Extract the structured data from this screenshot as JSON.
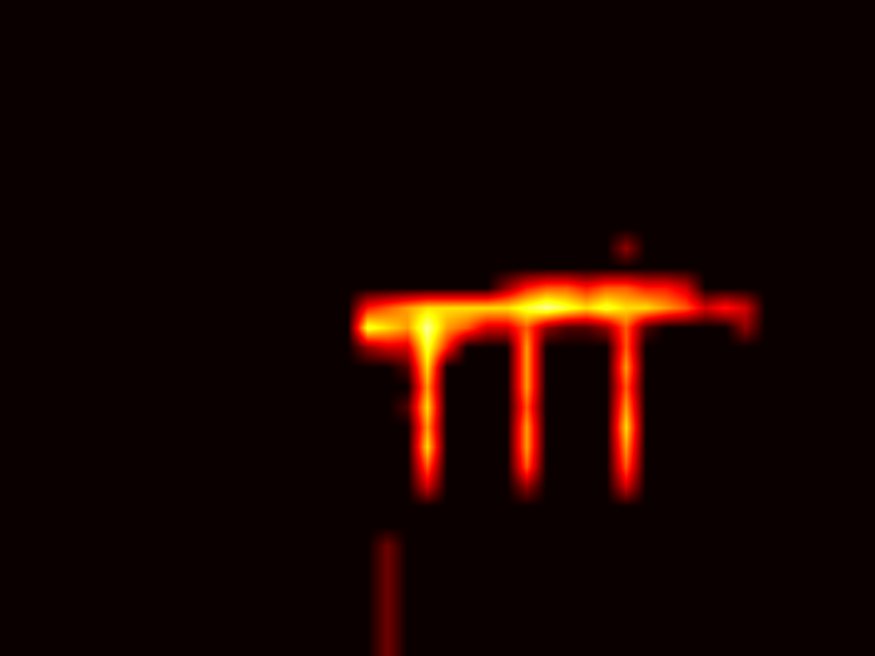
{
  "chart_data": {
    "type": "heatmap",
    "color": "hot",
    "value_range": [
      0,
      1
    ],
    "tick_labels": false,
    "cells": [
      [
        0,
        0,
        0,
        0,
        0,
        0,
        0,
        0,
        0,
        0,
        0,
        0,
        0,
        0,
        0,
        0,
        0,
        0,
        0,
        0,
        0,
        0,
        0,
        0,
        0,
        0,
        0,
        0,
        0,
        0,
        0,
        0,
        0,
        0,
        0,
        0,
        0,
        0,
        0,
        0,
        0,
        0,
        0,
        0
      ],
      [
        0,
        0,
        0,
        0,
        0,
        0,
        0,
        0,
        0,
        0,
        0,
        0,
        0,
        0,
        0,
        0,
        0,
        0,
        0,
        0,
        0,
        0,
        0,
        0,
        0,
        0,
        0,
        0,
        0,
        0,
        0,
        0,
        0,
        0,
        0,
        0,
        0,
        0,
        0,
        0,
        0,
        0,
        0,
        0
      ],
      [
        0,
        0,
        0,
        0,
        0,
        0,
        0,
        0,
        0,
        0,
        0,
        0,
        0,
        0,
        0,
        0,
        0,
        0,
        0,
        0,
        0,
        0,
        0,
        0,
        0,
        0,
        0,
        0,
        0,
        0,
        0,
        0,
        0,
        0,
        0,
        0,
        0,
        0,
        0,
        0,
        0,
        0,
        0,
        0
      ],
      [
        0,
        0,
        0,
        0,
        0,
        0,
        0,
        0,
        0,
        0,
        0,
        0,
        0,
        0,
        0,
        0,
        0,
        0,
        0,
        0,
        0,
        0,
        0,
        0,
        0,
        0,
        0,
        0,
        0,
        0,
        0,
        0,
        0,
        0,
        0,
        0,
        0,
        0,
        0,
        0,
        0,
        0,
        0,
        0
      ],
      [
        0,
        0,
        0,
        0,
        0,
        0,
        0,
        0,
        0,
        0,
        0,
        0,
        0,
        0,
        0,
        0,
        0,
        0,
        0,
        0,
        0,
        0,
        0,
        0,
        0,
        0,
        0,
        0,
        0,
        0,
        0,
        0,
        0,
        0,
        0,
        0,
        0,
        0,
        0,
        0,
        0,
        0,
        0,
        0
      ],
      [
        0,
        0,
        0,
        0,
        0,
        0,
        0,
        0,
        0,
        0,
        0,
        0,
        0,
        0,
        0,
        0,
        0,
        0,
        0,
        0,
        0,
        0,
        0,
        0,
        0,
        0,
        0,
        0,
        0,
        0,
        0,
        0,
        0,
        0,
        0,
        0,
        0,
        0,
        0,
        0,
        0,
        0,
        0,
        0
      ],
      [
        0,
        0,
        0,
        0,
        0,
        0,
        0,
        0,
        0,
        0,
        0,
        0,
        0,
        0,
        0,
        0,
        0,
        0,
        0,
        0,
        0,
        0,
        0,
        0,
        0,
        0,
        0,
        0,
        0,
        0,
        0,
        0,
        0,
        0,
        0,
        0,
        0,
        0,
        0,
        0,
        0,
        0,
        0,
        0
      ],
      [
        0,
        0,
        0,
        0,
        0,
        0,
        0,
        0,
        0,
        0,
        0,
        0,
        0,
        0,
        0,
        0,
        0,
        0,
        0,
        0,
        0,
        0,
        0,
        0,
        0,
        0,
        0,
        0,
        0,
        0,
        0,
        0,
        0,
        0,
        0,
        0,
        0,
        0,
        0,
        0,
        0,
        0,
        0,
        0
      ],
      [
        0,
        0,
        0,
        0,
        0,
        0,
        0,
        0,
        0,
        0,
        0,
        0,
        0,
        0,
        0,
        0,
        0,
        0,
        0,
        0,
        0,
        0,
        0,
        0,
        0,
        0,
        0,
        0,
        0,
        0,
        0,
        0,
        0,
        0,
        0,
        0,
        0,
        0,
        0,
        0,
        0,
        0,
        0,
        0
      ],
      [
        0,
        0,
        0,
        0,
        0,
        0,
        0,
        0,
        0,
        0,
        0,
        0,
        0,
        0,
        0,
        0,
        0,
        0,
        0,
        0,
        0,
        0,
        0,
        0,
        0,
        0,
        0,
        0,
        0,
        0,
        0,
        0,
        0,
        0,
        0,
        0,
        0,
        0,
        0,
        0,
        0,
        0,
        0,
        0
      ],
      [
        0,
        0,
        0,
        0,
        0,
        0,
        0,
        0,
        0,
        0,
        0,
        0,
        0,
        0,
        0,
        0,
        0,
        0,
        0,
        0,
        0,
        0,
        0,
        0,
        0,
        0,
        0,
        0,
        0,
        0,
        0,
        0,
        0,
        0,
        0,
        0,
        0,
        0,
        0,
        0,
        0,
        0,
        0,
        0
      ],
      [
        0,
        0,
        0,
        0,
        0,
        0,
        0,
        0,
        0,
        0,
        0,
        0,
        0,
        0,
        0,
        0,
        0,
        0,
        0,
        0,
        0,
        0,
        0,
        0,
        0,
        0,
        0,
        0,
        0,
        0,
        0,
        0,
        0,
        0,
        0,
        0,
        0,
        0,
        0,
        0,
        0,
        0,
        0,
        0
      ],
      [
        0,
        0,
        0,
        0,
        0,
        0,
        0,
        0,
        0,
        0,
        0,
        0,
        0,
        0,
        0,
        0,
        0,
        0,
        0,
        0,
        0,
        0,
        0,
        0,
        0,
        0,
        0,
        0,
        0,
        0,
        0,
        0.2,
        0,
        0,
        0,
        0,
        0,
        0,
        0,
        0,
        0,
        0,
        0,
        0
      ],
      [
        0,
        0,
        0,
        0,
        0,
        0,
        0,
        0,
        0,
        0,
        0,
        0,
        0,
        0,
        0,
        0,
        0,
        0,
        0,
        0,
        0,
        0,
        0,
        0,
        0,
        0,
        0,
        0,
        0,
        0,
        0,
        0,
        0,
        0,
        0,
        0,
        0,
        0,
        0,
        0,
        0,
        0,
        0,
        0
      ],
      [
        0,
        0,
        0,
        0,
        0,
        0,
        0,
        0,
        0,
        0,
        0,
        0,
        0,
        0,
        0,
        0,
        0,
        0,
        0,
        0,
        0,
        0,
        0,
        0,
        0,
        0.2,
        0.4,
        0.5,
        0.5,
        0.4,
        0.5,
        0.5,
        0.4,
        0.4,
        0.3,
        0,
        0,
        0,
        0,
        0,
        0,
        0,
        0,
        0
      ],
      [
        0,
        0,
        0,
        0,
        0,
        0,
        0,
        0,
        0,
        0,
        0,
        0,
        0,
        0,
        0,
        0,
        0,
        0,
        0.4,
        0.5,
        0.6,
        0.7,
        0.7,
        0.7,
        0.7,
        0.7,
        0.8,
        0.9,
        0.8,
        0.7,
        0.8,
        0.7,
        0.7,
        0.6,
        0.5,
        0.3,
        0.4,
        0.3,
        0,
        0,
        0,
        0,
        0,
        0
      ],
      [
        0,
        0,
        0,
        0,
        0,
        0,
        0,
        0,
        0,
        0,
        0,
        0,
        0,
        0,
        0,
        0,
        0,
        0,
        0.8,
        0.7,
        0.6,
        0.9,
        0.6,
        0.5,
        0.3,
        0.3,
        0.5,
        0.2,
        0.1,
        0.1,
        0.2,
        0.5,
        0.1,
        0,
        0,
        0,
        0,
        0.2,
        0,
        0,
        0,
        0,
        0,
        0
      ],
      [
        0,
        0,
        0,
        0,
        0,
        0,
        0,
        0,
        0,
        0,
        0,
        0,
        0,
        0,
        0,
        0,
        0,
        0,
        0.2,
        0.3,
        0.3,
        0.8,
        0.4,
        0,
        0,
        0,
        0.6,
        0,
        0,
        0,
        0,
        0.5,
        0,
        0,
        0,
        0,
        0,
        0,
        0,
        0,
        0,
        0,
        0,
        0
      ],
      [
        0,
        0,
        0,
        0,
        0,
        0,
        0,
        0,
        0,
        0,
        0,
        0,
        0,
        0,
        0,
        0,
        0,
        0,
        0,
        0,
        0.1,
        0.7,
        0,
        0,
        0,
        0,
        0.6,
        0,
        0,
        0,
        0,
        0.6,
        0,
        0,
        0,
        0,
        0,
        0,
        0,
        0,
        0,
        0,
        0,
        0
      ],
      [
        0,
        0,
        0,
        0,
        0,
        0,
        0,
        0,
        0,
        0,
        0,
        0,
        0,
        0,
        0,
        0,
        0,
        0,
        0,
        0,
        0,
        0.6,
        0,
        0,
        0,
        0,
        0.6,
        0,
        0,
        0,
        0,
        0.5,
        0,
        0,
        0,
        0,
        0,
        0,
        0,
        0,
        0,
        0,
        0,
        0
      ],
      [
        0,
        0,
        0,
        0,
        0,
        0,
        0,
        0,
        0,
        0,
        0,
        0,
        0,
        0,
        0,
        0,
        0,
        0,
        0,
        0,
        0.1,
        0.7,
        0,
        0,
        0,
        0,
        0.5,
        0,
        0,
        0,
        0,
        0.6,
        0,
        0,
        0,
        0,
        0,
        0,
        0,
        0,
        0,
        0,
        0,
        0
      ],
      [
        0,
        0,
        0,
        0,
        0,
        0,
        0,
        0,
        0,
        0,
        0,
        0,
        0,
        0,
        0,
        0,
        0,
        0,
        0,
        0,
        0,
        0.6,
        0,
        0,
        0,
        0,
        0.6,
        0,
        0,
        0,
        0,
        0.7,
        0,
        0,
        0,
        0,
        0,
        0,
        0,
        0,
        0,
        0,
        0,
        0
      ],
      [
        0,
        0,
        0,
        0,
        0,
        0,
        0,
        0,
        0,
        0,
        0,
        0,
        0,
        0,
        0,
        0,
        0,
        0,
        0,
        0,
        0,
        0.7,
        0,
        0,
        0,
        0,
        0.6,
        0,
        0,
        0,
        0,
        0.6,
        0,
        0,
        0,
        0,
        0,
        0,
        0,
        0,
        0,
        0,
        0,
        0
      ],
      [
        0,
        0,
        0,
        0,
        0,
        0,
        0,
        0,
        0,
        0,
        0,
        0,
        0,
        0,
        0,
        0,
        0,
        0,
        0,
        0,
        0,
        0.5,
        0,
        0,
        0,
        0,
        0.5,
        0,
        0,
        0,
        0,
        0.5,
        0,
        0,
        0,
        0,
        0,
        0,
        0,
        0,
        0,
        0,
        0,
        0
      ],
      [
        0,
        0,
        0,
        0,
        0,
        0,
        0,
        0,
        0,
        0,
        0,
        0,
        0,
        0,
        0,
        0,
        0,
        0,
        0,
        0,
        0,
        0.3,
        0,
        0,
        0,
        0,
        0.2,
        0,
        0,
        0,
        0,
        0.3,
        0,
        0,
        0,
        0,
        0,
        0,
        0,
        0,
        0,
        0,
        0,
        0
      ],
      [
        0,
        0,
        0,
        0,
        0,
        0,
        0,
        0,
        0,
        0,
        0,
        0,
        0,
        0,
        0,
        0,
        0,
        0,
        0,
        0,
        0,
        0,
        0,
        0,
        0,
        0,
        0,
        0,
        0,
        0,
        0,
        0,
        0,
        0,
        0,
        0,
        0,
        0,
        0,
        0,
        0,
        0,
        0,
        0
      ],
      [
        0,
        0,
        0,
        0,
        0,
        0,
        0,
        0,
        0,
        0,
        0,
        0,
        0,
        0,
        0,
        0,
        0,
        0,
        0,
        0,
        0,
        0,
        0,
        0,
        0,
        0,
        0,
        0,
        0,
        0,
        0,
        0,
        0,
        0,
        0,
        0,
        0,
        0,
        0,
        0,
        0,
        0,
        0,
        0
      ],
      [
        0,
        0,
        0,
        0,
        0,
        0,
        0,
        0,
        0,
        0,
        0,
        0,
        0,
        0,
        0,
        0,
        0,
        0,
        0,
        0.15,
        0,
        0,
        0,
        0,
        0,
        0,
        0,
        0,
        0,
        0,
        0,
        0,
        0,
        0,
        0,
        0,
        0,
        0,
        0,
        0,
        0,
        0,
        0,
        0
      ],
      [
        0,
        0,
        0,
        0,
        0,
        0,
        0,
        0,
        0,
        0,
        0,
        0,
        0,
        0,
        0,
        0,
        0,
        0,
        0,
        0.15,
        0,
        0,
        0,
        0,
        0,
        0,
        0,
        0,
        0,
        0,
        0,
        0,
        0,
        0,
        0,
        0,
        0,
        0,
        0,
        0,
        0,
        0,
        0,
        0
      ],
      [
        0,
        0,
        0,
        0,
        0,
        0,
        0,
        0,
        0,
        0,
        0,
        0,
        0,
        0,
        0,
        0,
        0,
        0,
        0,
        0.15,
        0,
        0,
        0,
        0,
        0,
        0,
        0,
        0,
        0,
        0,
        0,
        0,
        0,
        0,
        0,
        0,
        0,
        0,
        0,
        0,
        0,
        0,
        0,
        0
      ],
      [
        0,
        0,
        0,
        0,
        0,
        0,
        0,
        0,
        0,
        0,
        0,
        0,
        0,
        0,
        0,
        0,
        0,
        0,
        0,
        0.15,
        0,
        0,
        0,
        0,
        0,
        0,
        0,
        0,
        0,
        0,
        0,
        0,
        0,
        0,
        0,
        0,
        0,
        0,
        0,
        0,
        0,
        0,
        0,
        0
      ],
      [
        0,
        0,
        0,
        0,
        0,
        0,
        0,
        0,
        0,
        0,
        0,
        0,
        0,
        0,
        0,
        0,
        0,
        0,
        0,
        0.15,
        0,
        0,
        0,
        0,
        0,
        0,
        0,
        0,
        0,
        0,
        0,
        0,
        0,
        0,
        0,
        0,
        0,
        0,
        0,
        0,
        0,
        0,
        0,
        0
      ],
      [
        0,
        0,
        0,
        0,
        0,
        0,
        0,
        0,
        0,
        0,
        0,
        0,
        0,
        0,
        0,
        0,
        0,
        0,
        0,
        0.15,
        0,
        0,
        0,
        0,
        0,
        0,
        0,
        0,
        0,
        0,
        0,
        0,
        0,
        0,
        0,
        0,
        0,
        0,
        0,
        0,
        0,
        0,
        0,
        0
      ]
    ]
  }
}
